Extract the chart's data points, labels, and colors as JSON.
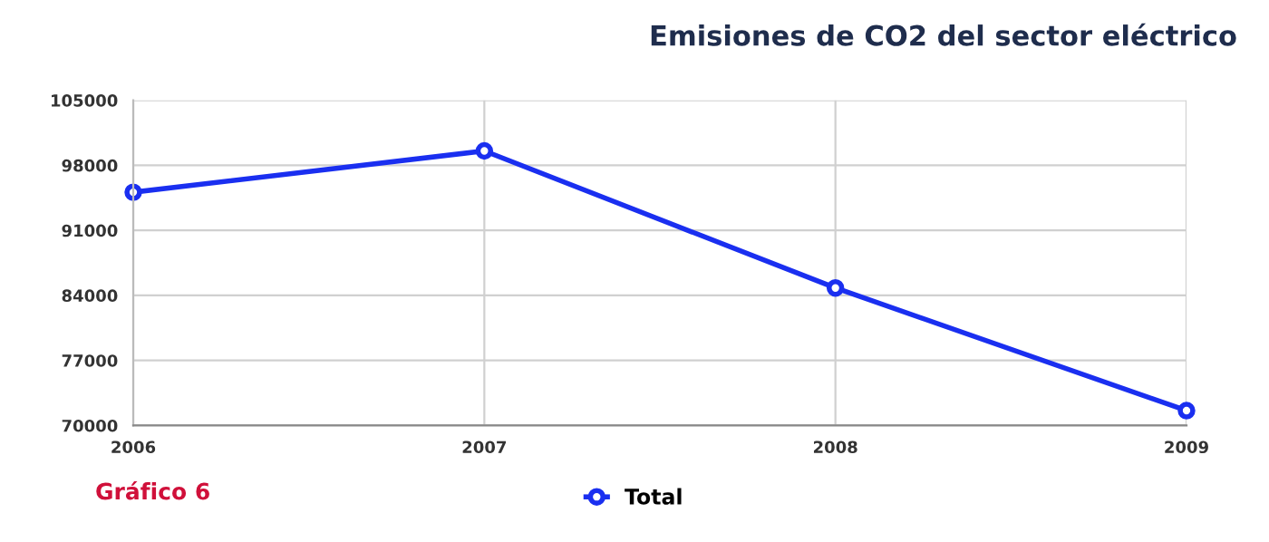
{
  "chart_data": {
    "type": "line",
    "title": "Emisiones de CO2 del sector eléctrico",
    "annotations": [
      "Gráfico 6"
    ],
    "x": [
      2006,
      2007,
      2008,
      2009
    ],
    "series": [
      {
        "name": "Total",
        "color": "#1a2ff0",
        "values": [
          95100,
          99550,
          84800,
          71600
        ]
      }
    ],
    "xlim": [
      2006,
      2009
    ],
    "xticks": [
      2006,
      2007,
      2008,
      2009
    ],
    "ylim": [
      70000,
      105000
    ],
    "yticks": [
      70000,
      77000,
      84000,
      91000,
      98000,
      105000
    ],
    "grid": true,
    "legend": "bottom",
    "marker": "circle",
    "line_style": "solid"
  }
}
